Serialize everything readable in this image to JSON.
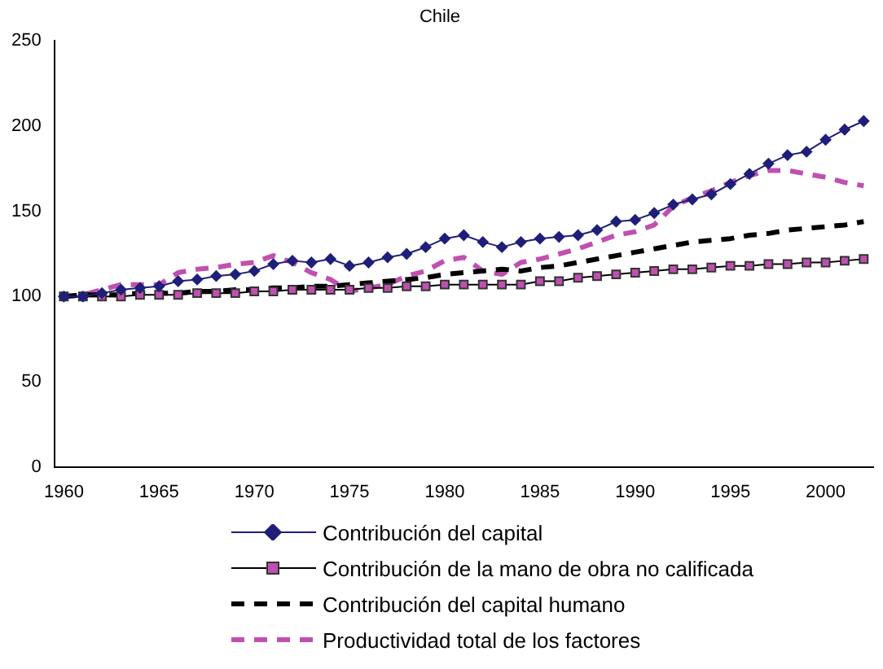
{
  "chart_data": {
    "type": "line",
    "title": "Chile",
    "categories": [
      "1960",
      null,
      null,
      null,
      null,
      "1965",
      null,
      null,
      null,
      null,
      "1970",
      null,
      null,
      null,
      null,
      "1975",
      null,
      null,
      null,
      null,
      "1980",
      null,
      null,
      null,
      null,
      "1985",
      null,
      null,
      null,
      null,
      "1990",
      null,
      null,
      null,
      null,
      "1995",
      null,
      null,
      null,
      null,
      "2000",
      null,
      null
    ],
    "ylim": [
      0,
      250
    ],
    "yticks": [
      0,
      50,
      100,
      150,
      200,
      250
    ],
    "grid": false,
    "legend": "bottom",
    "series": [
      {
        "name": "Contribución del capital",
        "color": "#1f1f7a",
        "marker": "diamond",
        "line_style": "solid",
        "values": [
          100,
          100,
          102,
          104,
          105,
          106,
          109,
          110,
          112,
          113,
          115,
          119,
          121,
          120,
          122,
          118,
          120,
          123,
          125,
          129,
          134,
          136,
          132,
          129,
          132,
          134,
          135,
          136,
          139,
          144,
          145,
          149,
          154,
          157,
          160,
          166,
          172,
          178,
          183,
          185,
          192,
          198,
          203
        ]
      },
      {
        "name": "Contribución de la mano de obra no calificada",
        "color": "#000000",
        "marker": "square",
        "line_style": "solid",
        "values": [
          100,
          100,
          100,
          100,
          101,
          101,
          101,
          102,
          102,
          102,
          103,
          103,
          104,
          104,
          104,
          104,
          105,
          105,
          106,
          106,
          107,
          107,
          107,
          107,
          107,
          109,
          109,
          111,
          112,
          113,
          114,
          115,
          116,
          116,
          117,
          118,
          118,
          119,
          119,
          120,
          120,
          121,
          122
        ]
      },
      {
        "name": "Contribución del capital humano",
        "color": "#000000",
        "marker": "none",
        "line_style": "dashed",
        "values": [
          100,
          101,
          101,
          101,
          102,
          102,
          102,
          103,
          103,
          104,
          104,
          105,
          105,
          106,
          106,
          107,
          108,
          109,
          110,
          111,
          113,
          114,
          115,
          116,
          115,
          117,
          118,
          120,
          122,
          124,
          126,
          128,
          130,
          132,
          133,
          134,
          136,
          137,
          139,
          140,
          141,
          142,
          144
        ]
      },
      {
        "name": "Productividad total de los factores",
        "color": "#c050b0",
        "marker": "none",
        "line_style": "dashed",
        "values": [
          100,
          101,
          104,
          107,
          107,
          107,
          114,
          116,
          117,
          119,
          120,
          124,
          120,
          114,
          110,
          103,
          105,
          107,
          112,
          115,
          121,
          123,
          115,
          113,
          120,
          122,
          125,
          128,
          132,
          136,
          138,
          142,
          153,
          158,
          162,
          167,
          171,
          174,
          174,
          172,
          170,
          167,
          165
        ]
      }
    ]
  }
}
